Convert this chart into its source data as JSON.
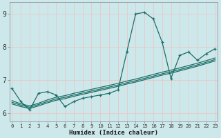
{
  "bg_color": "#cde8ea",
  "grid_color": "#e8c8c8",
  "line_color": "#1a6e68",
  "xlabel": "Humidex (Indice chaleur)",
  "xlim_min": 0,
  "xlim_max": 23,
  "ylim_min": 5.75,
  "ylim_max": 9.35,
  "xticks": [
    0,
    1,
    2,
    3,
    4,
    5,
    6,
    7,
    8,
    9,
    10,
    11,
    12,
    13,
    14,
    15,
    16,
    17,
    18,
    19,
    20,
    21,
    22,
    23
  ],
  "yticks": [
    6,
    7,
    8,
    9
  ],
  "series0_x": [
    0,
    1,
    2,
    3,
    4,
    5,
    6,
    7,
    8,
    9,
    10,
    11,
    12,
    13,
    14,
    15,
    16,
    17,
    18,
    19,
    20,
    21,
    22,
    23
  ],
  "series0_y": [
    6.75,
    6.35,
    6.1,
    6.6,
    6.65,
    6.55,
    6.2,
    6.35,
    6.45,
    6.5,
    6.55,
    6.6,
    6.7,
    7.85,
    9.0,
    9.05,
    8.85,
    8.15,
    7.05,
    7.75,
    7.85,
    7.6,
    7.8,
    7.95
  ],
  "series1_x": [
    0,
    1,
    2,
    3,
    4,
    5,
    6,
    7,
    8,
    9,
    10,
    11,
    12,
    13,
    14,
    15,
    16,
    17,
    18,
    19,
    20,
    21,
    22,
    23
  ],
  "series1_y": [
    6.38,
    6.28,
    6.22,
    6.3,
    6.4,
    6.48,
    6.53,
    6.6,
    6.66,
    6.72,
    6.78,
    6.84,
    6.9,
    6.97,
    7.03,
    7.1,
    7.17,
    7.24,
    7.3,
    7.37,
    7.44,
    7.51,
    7.59,
    7.67
  ],
  "series2_x": [
    0,
    1,
    2,
    3,
    4,
    5,
    6,
    7,
    8,
    9,
    10,
    11,
    12,
    13,
    14,
    15,
    16,
    17,
    18,
    19,
    20,
    21,
    22,
    23
  ],
  "series2_y": [
    6.33,
    6.24,
    6.18,
    6.26,
    6.35,
    6.43,
    6.48,
    6.55,
    6.61,
    6.67,
    6.73,
    6.79,
    6.85,
    6.92,
    6.98,
    7.05,
    7.12,
    7.19,
    7.25,
    7.32,
    7.39,
    7.46,
    7.54,
    7.62
  ],
  "series3_x": [
    0,
    1,
    2,
    3,
    4,
    5,
    6,
    7,
    8,
    9,
    10,
    11,
    12,
    13,
    14,
    15,
    16,
    17,
    18,
    19,
    20,
    21,
    22,
    23
  ],
  "series3_y": [
    6.28,
    6.2,
    6.14,
    6.22,
    6.31,
    6.39,
    6.44,
    6.51,
    6.57,
    6.63,
    6.69,
    6.75,
    6.81,
    6.88,
    6.94,
    7.01,
    7.08,
    7.15,
    7.21,
    7.28,
    7.35,
    7.42,
    7.5,
    7.58
  ]
}
